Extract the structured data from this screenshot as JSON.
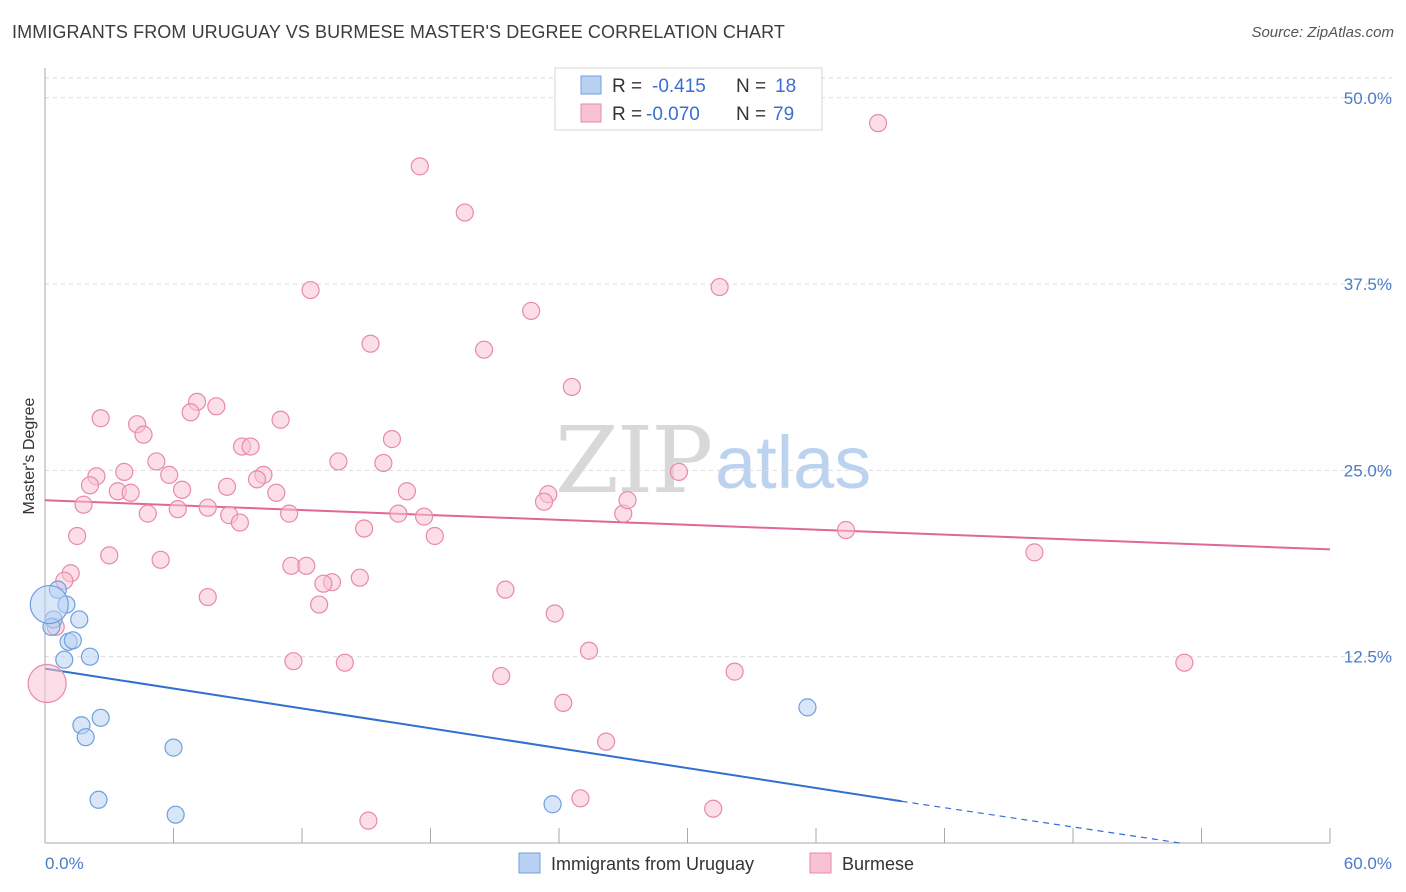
{
  "title": "IMMIGRANTS FROM URUGUAY VS BURMESE MASTER'S DEGREE CORRELATION CHART",
  "source": "Source: ZipAtlas.com",
  "watermark": {
    "zip": "ZIP",
    "atlas": "atlas"
  },
  "colors": {
    "uruguay_fill": "#b8d1f3",
    "uruguay_stroke": "#6f9fe0",
    "uruguay_line": "#3070d0",
    "burmese_fill": "#f7c3d3",
    "burmese_stroke": "#e88aa8",
    "burmese_line": "#e0679a",
    "tick_text": "#4a7cc9",
    "grid": "#d9d9d9"
  },
  "legend": {
    "r_label": "R =",
    "n_label": "N =",
    "uruguay": {
      "r": "-0.415",
      "n": "18"
    },
    "burmese": {
      "r": "-0.070",
      "n": "79"
    }
  },
  "chart_data": {
    "type": "scatter",
    "title": "IMMIGRANTS FROM URUGUAY VS BURMESE MASTER'S DEGREE CORRELATION CHART",
    "xlabel": "",
    "ylabel": "Master's Degree",
    "xlim": [
      0,
      60
    ],
    "ylim": [
      0,
      52
    ],
    "x_tick_labels": [
      "0.0%",
      "60.0%"
    ],
    "y_ticks": [
      12.5,
      25.0,
      37.5,
      50.0
    ],
    "y_tick_labels": [
      "12.5%",
      "25.0%",
      "37.5%",
      "50.0%"
    ],
    "grid": true,
    "legend_position": "top-center",
    "series": [
      {
        "name": "Immigrants from Uruguay",
        "points": [
          [
            0.4,
            15.0,
            1
          ],
          [
            0.6,
            17.0,
            1
          ],
          [
            0.3,
            14.5,
            1
          ],
          [
            1.0,
            16.0,
            1
          ],
          [
            1.6,
            15.0,
            1
          ],
          [
            1.1,
            13.5,
            1
          ],
          [
            1.3,
            13.6,
            1
          ],
          [
            0.9,
            12.3,
            1
          ],
          [
            2.1,
            12.5,
            1
          ],
          [
            2.6,
            8.4,
            1
          ],
          [
            1.7,
            7.9,
            1
          ],
          [
            1.9,
            7.1,
            1
          ],
          [
            6.0,
            6.4,
            1
          ],
          [
            2.5,
            2.9,
            1
          ],
          [
            6.1,
            1.9,
            1
          ],
          [
            35.6,
            9.1,
            1
          ],
          [
            23.7,
            2.6,
            1
          ],
          [
            0.2,
            16.0,
            2
          ]
        ],
        "trend": {
          "x0": 0,
          "y0": 11.7,
          "x1": 40,
          "y1": 2.8,
          "dashed_to_x": 53,
          "dashed_to_y": 0.0
        },
        "r": -0.415,
        "n": 18
      },
      {
        "name": "Burmese",
        "points": [
          [
            17.5,
            45.4,
            1
          ],
          [
            19.6,
            42.3,
            1
          ],
          [
            38.9,
            48.3,
            1
          ],
          [
            12.4,
            37.1,
            1
          ],
          [
            31.5,
            37.3,
            1
          ],
          [
            22.7,
            35.7,
            1
          ],
          [
            15.2,
            33.5,
            1
          ],
          [
            20.5,
            33.1,
            1
          ],
          [
            24.6,
            30.6,
            1
          ],
          [
            7.1,
            29.6,
            1
          ],
          [
            6.8,
            28.9,
            1
          ],
          [
            8.0,
            29.3,
            1
          ],
          [
            2.6,
            28.5,
            1
          ],
          [
            4.3,
            28.1,
            1
          ],
          [
            11.0,
            28.4,
            1
          ],
          [
            4.6,
            27.4,
            1
          ],
          [
            9.2,
            26.6,
            1
          ],
          [
            9.6,
            26.6,
            1
          ],
          [
            16.2,
            27.1,
            1
          ],
          [
            5.2,
            25.6,
            1
          ],
          [
            13.7,
            25.6,
            1
          ],
          [
            15.8,
            25.5,
            1
          ],
          [
            29.6,
            24.9,
            1
          ],
          [
            2.4,
            24.6,
            1
          ],
          [
            3.7,
            24.9,
            1
          ],
          [
            5.8,
            24.7,
            1
          ],
          [
            10.2,
            24.7,
            1
          ],
          [
            2.1,
            24.0,
            1
          ],
          [
            3.4,
            23.6,
            1
          ],
          [
            4.0,
            23.5,
            1
          ],
          [
            6.4,
            23.7,
            1
          ],
          [
            8.5,
            23.9,
            1
          ],
          [
            9.9,
            24.4,
            1
          ],
          [
            10.8,
            23.5,
            1
          ],
          [
            16.9,
            23.6,
            1
          ],
          [
            23.5,
            23.4,
            1
          ],
          [
            1.8,
            22.7,
            1
          ],
          [
            4.8,
            22.1,
            1
          ],
          [
            6.2,
            22.4,
            1
          ],
          [
            7.6,
            22.5,
            1
          ],
          [
            8.6,
            22.0,
            1
          ],
          [
            9.1,
            21.5,
            1
          ],
          [
            11.4,
            22.1,
            1
          ],
          [
            16.5,
            22.1,
            1
          ],
          [
            17.7,
            21.9,
            1
          ],
          [
            23.3,
            22.9,
            1
          ],
          [
            27.0,
            22.1,
            1
          ],
          [
            27.2,
            23.0,
            1
          ],
          [
            1.5,
            20.6,
            1
          ],
          [
            14.9,
            21.1,
            1
          ],
          [
            18.2,
            20.6,
            1
          ],
          [
            37.4,
            21.0,
            1
          ],
          [
            3.0,
            19.3,
            1
          ],
          [
            5.4,
            19.0,
            1
          ],
          [
            11.5,
            18.6,
            1
          ],
          [
            12.2,
            18.6,
            1
          ],
          [
            46.2,
            19.5,
            1
          ],
          [
            13.4,
            17.5,
            1
          ],
          [
            13.0,
            17.4,
            1
          ],
          [
            14.7,
            17.8,
            1
          ],
          [
            21.5,
            17.0,
            1
          ],
          [
            7.6,
            16.5,
            1
          ],
          [
            12.8,
            16.0,
            1
          ],
          [
            23.8,
            15.4,
            1
          ],
          [
            1.2,
            18.1,
            1
          ],
          [
            0.9,
            17.6,
            1
          ],
          [
            0.5,
            14.5,
            1
          ],
          [
            25.4,
            12.9,
            1
          ],
          [
            11.6,
            12.2,
            1
          ],
          [
            14.0,
            12.1,
            1
          ],
          [
            21.3,
            11.2,
            1
          ],
          [
            32.2,
            11.5,
            1
          ],
          [
            53.2,
            12.1,
            1
          ],
          [
            24.2,
            9.4,
            1
          ],
          [
            26.2,
            6.8,
            1
          ],
          [
            25.0,
            3.0,
            1
          ],
          [
            31.2,
            2.3,
            1
          ],
          [
            15.1,
            1.5,
            1
          ],
          [
            0.1,
            10.7,
            2
          ]
        ],
        "trend": {
          "x0": 0,
          "y0": 23.0,
          "x1": 60,
          "y1": 19.7
        },
        "r": -0.07,
        "n": 79
      }
    ]
  },
  "bottom_legend": [
    "Immigrants from Uruguay",
    "Burmese"
  ]
}
